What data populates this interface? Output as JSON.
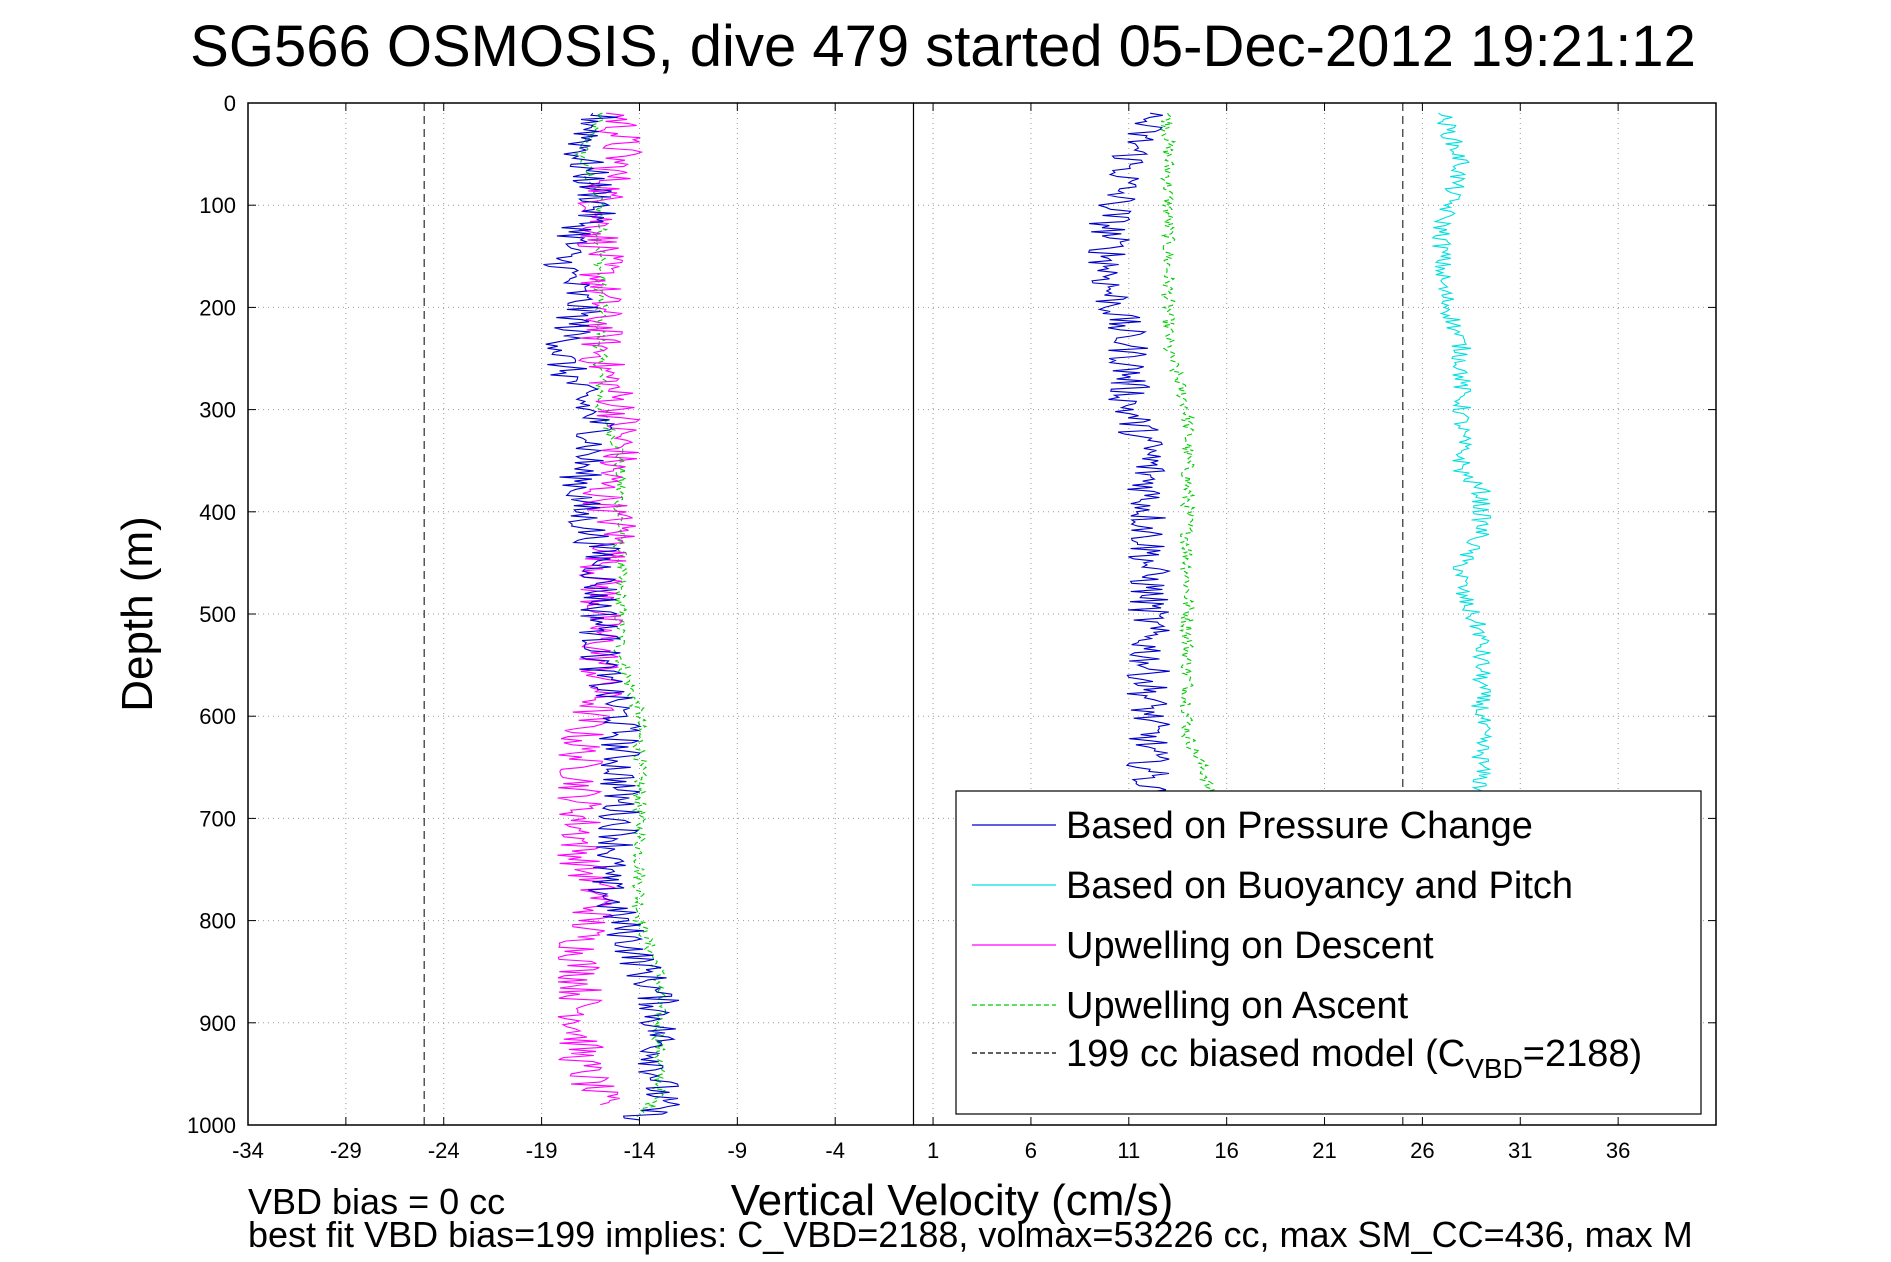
{
  "chart_data": {
    "type": "line",
    "title": "SG566 OSMOSIS, dive 479 started 05-Dec-2012 19:21:12",
    "xlabel": "Vertical Velocity (cm/s)",
    "ylabel": "Depth (m)",
    "xlim": [
      -34,
      41
    ],
    "ylim": [
      1000,
      0
    ],
    "y_reversed": true,
    "grid": true,
    "x_ticks": [
      "-34",
      "-29",
      "-24",
      "-19",
      "-14",
      "-9",
      "-4",
      "1",
      "6",
      "11",
      "16",
      "21",
      "26",
      "31",
      "36"
    ],
    "y_ticks": [
      "0",
      "100",
      "200",
      "300",
      "400",
      "500",
      "600",
      "700",
      "800",
      "900",
      "1000"
    ],
    "legend_position": "bottom-right",
    "series": [
      {
        "name": "Based on Pressure Change",
        "color": "#0000cc",
        "style": "solid",
        "descent": {
          "x": [
            -16,
            -17,
            -16,
            -18,
            -17,
            -18,
            -17,
            -16,
            -17,
            -17,
            -16,
            -16,
            -16,
            -16,
            -15,
            -15,
            -15,
            -15,
            -16,
            -15,
            -14,
            -13,
            -13,
            -13,
            -13,
            -14
          ],
          "depth": [
            10,
            50,
            100,
            150,
            200,
            250,
            290,
            320,
            360,
            400,
            440,
            480,
            520,
            560,
            600,
            640,
            680,
            720,
            760,
            800,
            840,
            880,
            920,
            950,
            980,
            995
          ]
        },
        "ascent": {
          "x": [
            12,
            11,
            10,
            10,
            11,
            11,
            12,
            12,
            12,
            12,
            12,
            12,
            12,
            12,
            12,
            12
          ],
          "depth": [
            10,
            60,
            120,
            180,
            240,
            300,
            340,
            380,
            420,
            460,
            500,
            540,
            580,
            620,
            660,
            680
          ]
        }
      },
      {
        "name": "Based on Buoyancy and Pitch",
        "color": "#00e0e0",
        "style": "solid",
        "ascent": {
          "x": [
            27,
            28,
            27,
            27,
            28,
            28,
            28,
            28,
            29,
            29,
            28,
            28,
            29,
            29,
            29,
            29,
            29,
            29
          ],
          "depth": [
            10,
            60,
            120,
            180,
            240,
            270,
            320,
            360,
            380,
            420,
            450,
            480,
            520,
            560,
            600,
            640,
            660,
            680
          ]
        }
      },
      {
        "name": "Upwelling on Descent",
        "color": "#ff00ff",
        "style": "solid",
        "descent": {
          "x": [
            -15,
            -15,
            -16,
            -16,
            -16,
            -16,
            -15,
            -15,
            -16,
            -15,
            -16,
            -16,
            -16,
            -16,
            -17,
            -17,
            -17,
            -17,
            -16,
            -17,
            -17,
            -17,
            -17,
            -16
          ],
          "depth": [
            10,
            50,
            100,
            150,
            200,
            250,
            300,
            340,
            380,
            420,
            460,
            500,
            540,
            580,
            620,
            660,
            700,
            740,
            780,
            820,
            860,
            900,
            940,
            980
          ]
        }
      },
      {
        "name": "Upwelling on Ascent",
        "color": "#00cc00",
        "style": "dashed",
        "descent": {
          "x": [
            -16,
            -17,
            -16,
            -16,
            -16,
            -16,
            -16,
            -15,
            -15,
            -15,
            -15,
            -15,
            -15,
            -14,
            -14,
            -14,
            -14,
            -14,
            -13,
            -13,
            -13,
            -13,
            -14
          ],
          "depth": [
            10,
            50,
            100,
            150,
            200,
            250,
            300,
            340,
            380,
            420,
            460,
            500,
            540,
            600,
            650,
            700,
            750,
            800,
            850,
            900,
            940,
            970,
            995
          ]
        },
        "ascent": {
          "x": [
            13,
            13,
            13,
            13,
            13,
            14,
            14,
            14,
            14,
            14,
            14,
            14,
            14,
            14,
            15,
            15
          ],
          "depth": [
            10,
            60,
            120,
            180,
            240,
            300,
            340,
            380,
            420,
            460,
            500,
            540,
            580,
            620,
            660,
            680
          ]
        }
      },
      {
        "name": "199 cc biased model (C",
        "name_sub": "VBD",
        "name_tail": "=2188)",
        "color": "#000000",
        "style": "dashed",
        "constant_x": [
          -25,
          25
        ]
      }
    ],
    "zero_line_x": 0,
    "footer": {
      "line1": "VBD bias = 0 cc",
      "line2": "best fit VBD bias=199 implies: C_VBD=2188, volmax=53226 cc, max SM_CC=436, max M"
    }
  }
}
